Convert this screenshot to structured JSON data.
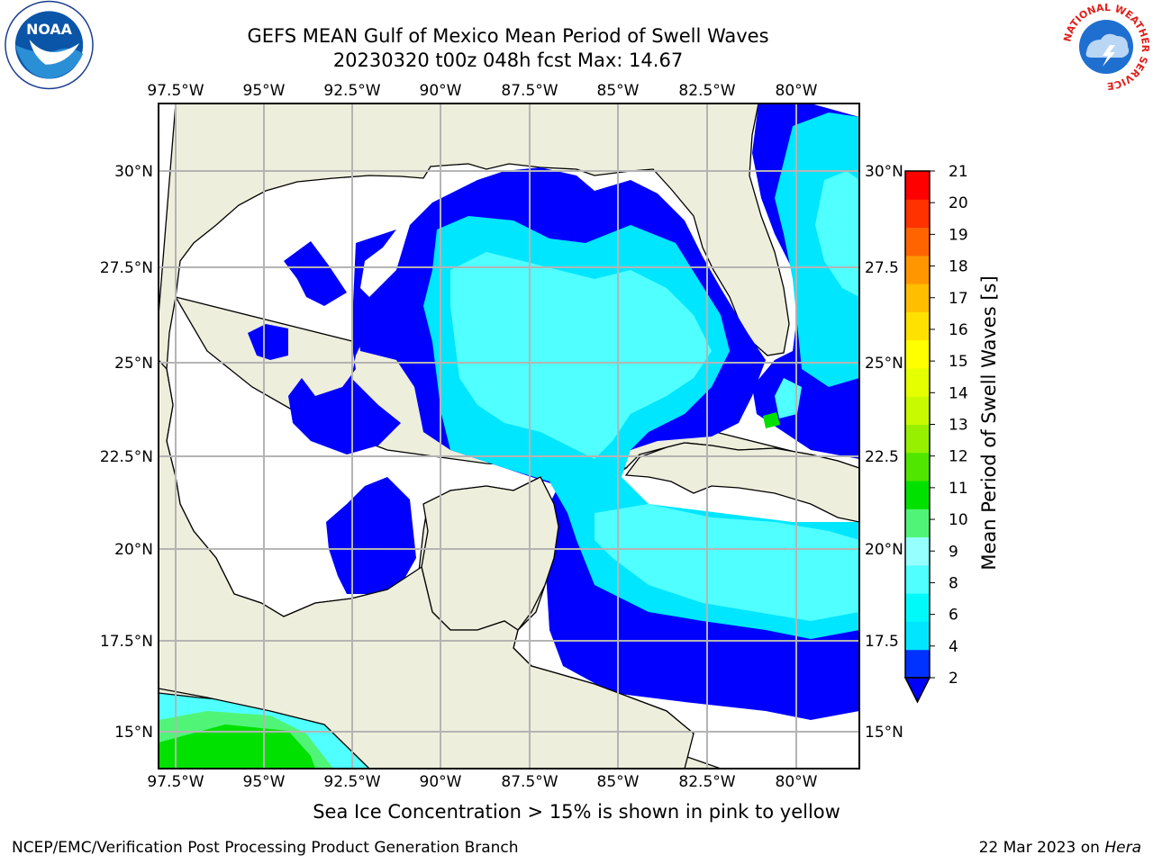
{
  "title": {
    "line1": "GEFS MEAN Gulf of Mexico Mean Period of Swell Waves",
    "line2": "20230320 t00z 048h fcst   Max: 14.67"
  },
  "logos": {
    "left": {
      "icon": "noaa-logo",
      "text": "NOAA"
    },
    "right": {
      "icon": "nws-logo",
      "text": "NATIONAL WEATHER SERVICE"
    }
  },
  "map": {
    "lon_labels": [
      "97.5°W",
      "95°W",
      "92.5°W",
      "90°W",
      "87.5°W",
      "85°W",
      "82.5°W",
      "80°W"
    ],
    "lat_labels_left": [
      "30°N",
      "27.5°N",
      "25°N",
      "22.5°N",
      "20°N",
      "17.5°N",
      "15°N"
    ],
    "lat_labels_right": [
      "30°N",
      "27.5",
      "25°N",
      "22.5",
      "20°N",
      "17.5",
      "15°N"
    ],
    "colors": {
      "land": "#eeeedc",
      "grid": "#b4b4b4",
      "ocean_no_data": "#ffffff"
    }
  },
  "colorbar": {
    "label": "Mean Period of Swell Waves [s]",
    "ticks": [
      "21",
      "20",
      "19",
      "18",
      "17",
      "16",
      "15",
      "14",
      "13",
      "12",
      "11",
      "10",
      "9",
      "8",
      "6",
      "4",
      "2"
    ],
    "colors": [
      "#0032ff",
      "#00e6ff",
      "#00fafa",
      "#50ffff",
      "#96ffff",
      "#50f578",
      "#00e100",
      "#50e600",
      "#96f000",
      "#c8fa00",
      "#e6ff00",
      "#ffff00",
      "#ffe100",
      "#ffbe00",
      "#ff9600",
      "#ff6400",
      "#ff3200",
      "#ff0000"
    ],
    "extend": "min",
    "extend_color": "#0000ff"
  },
  "note": "Sea Ice Concentration > 15% is shown in pink to yellow",
  "credit_left": "NCEP/EMC/Verification Post Processing Product Generation Branch",
  "credit_right_date": "22 Mar 2023 on ",
  "credit_right_host": "Hera"
}
